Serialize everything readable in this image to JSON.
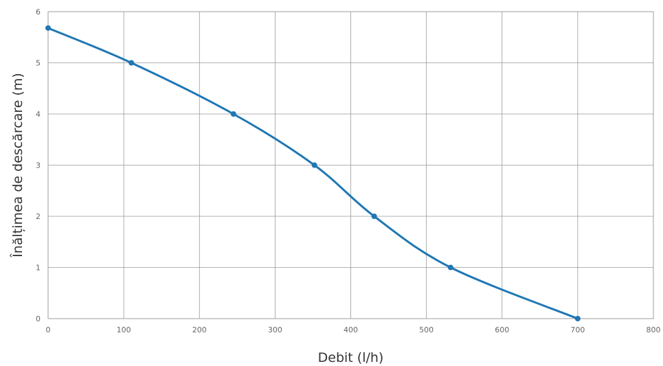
{
  "chart_data": {
    "type": "line",
    "title": "",
    "xlabel": "Debit (l/h)",
    "ylabel": "Înălțimea de descărcare (m)",
    "xlim": [
      0,
      800
    ],
    "ylim": [
      0,
      6
    ],
    "x_ticks": [
      0,
      100,
      200,
      300,
      400,
      500,
      600,
      700,
      800
    ],
    "y_ticks": [
      0,
      1,
      2,
      3,
      4,
      5,
      6
    ],
    "grid": true,
    "legend": "none",
    "series": [
      {
        "color": "#1f77b4",
        "x": [
          0,
          110,
          245,
          352,
          431,
          532,
          700
        ],
        "y": [
          5.68,
          5.0,
          4.0,
          3.0,
          2.0,
          1.0,
          0.0
        ]
      }
    ]
  }
}
